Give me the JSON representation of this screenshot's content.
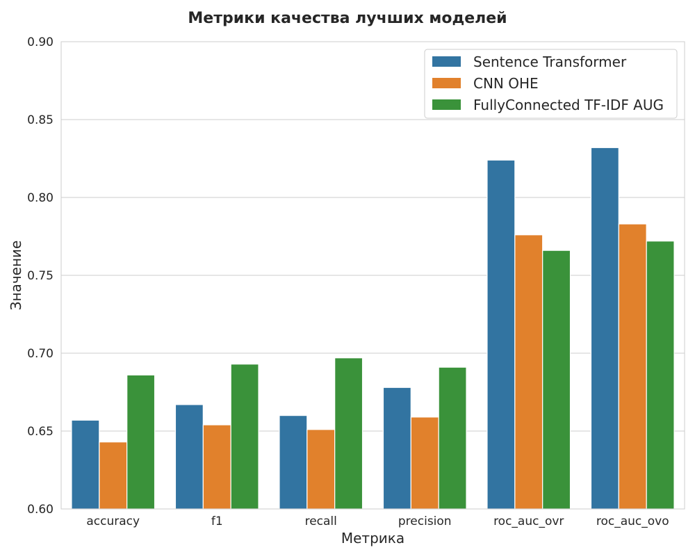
{
  "chart_data": {
    "type": "bar",
    "title": "Метрики качества лучших моделей",
    "xlabel": "Метрика",
    "ylabel": "Значение",
    "ylim": [
      0.6,
      0.9
    ],
    "yticks": [
      "0.60",
      "0.65",
      "0.70",
      "0.75",
      "0.80",
      "0.85",
      "0.90"
    ],
    "grid": true,
    "legend_position": "top-right",
    "categories": [
      "accuracy",
      "f1",
      "recall",
      "precision",
      "roc_auc_ovr",
      "roc_auc_ovo"
    ],
    "series": [
      {
        "name": "Sentence Transformer",
        "color": "#3274a1",
        "values": [
          0.657,
          0.667,
          0.66,
          0.678,
          0.824,
          0.832
        ]
      },
      {
        "name": "CNN OHE",
        "color": "#e1812c",
        "values": [
          0.643,
          0.654,
          0.651,
          0.659,
          0.776,
          0.783
        ]
      },
      {
        "name": "FullyConnected TF-IDF AUG",
        "color": "#3a923a",
        "values": [
          0.686,
          0.693,
          0.697,
          0.691,
          0.766,
          0.772
        ]
      }
    ]
  }
}
